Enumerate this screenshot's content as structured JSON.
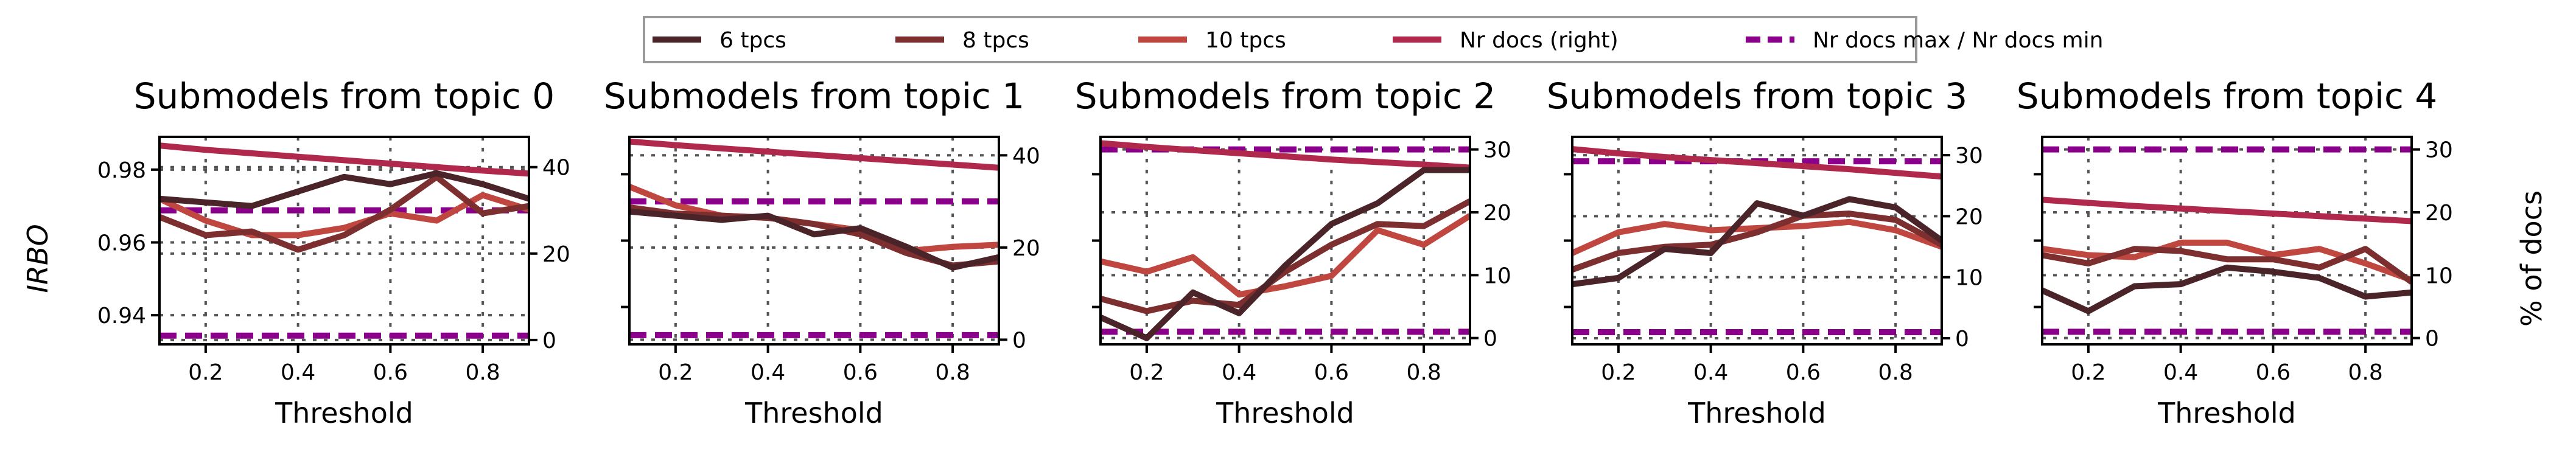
{
  "colors": {
    "6 tpcs": "#4a2428",
    "8 tpcs": "#7d2e2e",
    "10 tpcs": "#c0473f",
    "nrdocs": "#b0284b",
    "minmax": "#8b008b"
  },
  "legend": {
    "items": [
      {
        "label": "6 tpcs",
        "color_key": "6 tpcs",
        "dashed": false
      },
      {
        "label": "8 tpcs",
        "color_key": "8 tpcs",
        "dashed": false
      },
      {
        "label": "10 tpcs",
        "color_key": "10 tpcs",
        "dashed": false
      },
      {
        "label": "Nr docs (right)",
        "color_key": "nrdocs",
        "dashed": false
      },
      {
        "label": "Nr docs max / Nr docs min",
        "color_key": "minmax",
        "dashed": true
      }
    ]
  },
  "left_label": "IRBO",
  "right_label": "% of docs",
  "chart_data": [
    {
      "type": "line",
      "title": "Submodels from topic 0",
      "xlabel": "Threshold",
      "xlim": [
        0.1,
        0.9
      ],
      "xticks": [
        0.2,
        0.4,
        0.6,
        0.8
      ],
      "xtick_labels": [
        "0.2",
        "0.4",
        "0.6",
        "0.8"
      ],
      "ylim": [
        0.932,
        0.989
      ],
      "yticks": [
        0.94,
        0.96,
        0.98
      ],
      "ytick_labels": [
        "0.94",
        "0.96",
        "0.98"
      ],
      "y2lim": [
        -1,
        47
      ],
      "y2ticks": [
        0,
        20,
        40
      ],
      "y2tick_labels": [
        "0",
        "20",
        "40"
      ],
      "x": [
        0.1,
        0.2,
        0.3,
        0.4,
        0.5,
        0.6,
        0.7,
        0.8,
        0.9
      ],
      "series": [
        {
          "name": "6 tpcs",
          "values": [
            0.972,
            0.971,
            0.97,
            0.974,
            0.978,
            0.976,
            0.979,
            0.976,
            0.972
          ]
        },
        {
          "name": "8 tpcs",
          "values": [
            0.967,
            0.962,
            0.963,
            0.958,
            0.962,
            0.969,
            0.978,
            0.968,
            0.97
          ]
        },
        {
          "name": "10 tpcs",
          "values": [
            0.972,
            0.966,
            0.962,
            0.962,
            0.964,
            0.968,
            0.966,
            0.973,
            0.969
          ]
        }
      ],
      "nrdocs": [
        45,
        44,
        43.2,
        42.4,
        41.6,
        40.8,
        40,
        39.2,
        38.5
      ],
      "nrdocs_max": 30,
      "nrdocs_min": 1
    },
    {
      "type": "line",
      "title": "Submodels from topic 1",
      "xlabel": "Threshold",
      "xlim": [
        0.1,
        0.9
      ],
      "xticks": [
        0.2,
        0.4,
        0.6,
        0.8
      ],
      "xtick_labels": [
        "0.2",
        "0.4",
        "0.6",
        "0.8"
      ],
      "y2lim": [
        -1,
        44
      ],
      "y2ticks": [
        0,
        20,
        40
      ],
      "y2tick_labels": [
        "0",
        "20",
        "40"
      ],
      "x": [
        0.1,
        0.2,
        0.3,
        0.4,
        0.5,
        0.6,
        0.7,
        0.8,
        0.9
      ],
      "ylim": [
        0,
        1
      ],
      "series": [
        {
          "name": "6 tpcs",
          "values": [
            0.64,
            0.62,
            0.6,
            0.62,
            0.53,
            0.56,
            0.47,
            0.37,
            0.42
          ]
        },
        {
          "name": "8 tpcs",
          "values": [
            0.66,
            0.63,
            0.62,
            0.61,
            0.58,
            0.53,
            0.44,
            0.38,
            0.4
          ]
        },
        {
          "name": "10 tpcs",
          "values": [
            0.76,
            0.67,
            0.62,
            0.61,
            0.58,
            0.55,
            0.45,
            0.47,
            0.48
          ]
        }
      ],
      "nrdocs": [
        43,
        42.2,
        41.5,
        40.8,
        40.1,
        39.4,
        38.7,
        38,
        37.3
      ],
      "nrdocs_max": 30,
      "nrdocs_min": 1
    },
    {
      "type": "line",
      "title": "Submodels from topic 2",
      "xlabel": "Threshold",
      "xlim": [
        0.1,
        0.9
      ],
      "xticks": [
        0.2,
        0.4,
        0.6,
        0.8
      ],
      "xtick_labels": [
        "0.2",
        "0.4",
        "0.6",
        "0.8"
      ],
      "y2lim": [
        -1,
        32
      ],
      "y2ticks": [
        0,
        10,
        20,
        30
      ],
      "y2tick_labels": [
        "0",
        "10",
        "20",
        "30"
      ],
      "x": [
        0.1,
        0.2,
        0.3,
        0.4,
        0.5,
        0.6,
        0.7,
        0.8,
        0.9
      ],
      "ylim": [
        0,
        1
      ],
      "series": [
        {
          "name": "6 tpcs",
          "values": [
            0.13,
            0.03,
            0.25,
            0.15,
            0.38,
            0.58,
            0.68,
            0.84,
            0.84
          ]
        },
        {
          "name": "8 tpcs",
          "values": [
            0.22,
            0.16,
            0.21,
            0.19,
            0.35,
            0.48,
            0.58,
            0.57,
            0.69
          ]
        },
        {
          "name": "10 tpcs",
          "values": [
            0.4,
            0.35,
            0.42,
            0.24,
            0.28,
            0.33,
            0.55,
            0.48,
            0.62
          ]
        }
      ],
      "nrdocs": [
        31,
        30.4,
        29.9,
        29.4,
        28.9,
        28.4,
        28,
        27.6,
        27.1
      ],
      "nrdocs_max": 30,
      "nrdocs_min": 1
    },
    {
      "type": "line",
      "title": "Submodels from topic 3",
      "xlabel": "Threshold",
      "xlim": [
        0.1,
        0.9
      ],
      "xticks": [
        0.2,
        0.4,
        0.6,
        0.8
      ],
      "xtick_labels": [
        "0.2",
        "0.4",
        "0.6",
        "0.8"
      ],
      "y2lim": [
        -1,
        33
      ],
      "y2ticks": [
        0,
        10,
        20,
        30
      ],
      "y2tick_labels": [
        "0",
        "10",
        "20",
        "30"
      ],
      "x": [
        0.1,
        0.2,
        0.3,
        0.4,
        0.5,
        0.6,
        0.7,
        0.8,
        0.9
      ],
      "ylim": [
        0,
        1
      ],
      "series": [
        {
          "name": "6 tpcs",
          "values": [
            0.29,
            0.32,
            0.46,
            0.44,
            0.68,
            0.62,
            0.7,
            0.66,
            0.5
          ]
        },
        {
          "name": "8 tpcs",
          "values": [
            0.36,
            0.44,
            0.47,
            0.48,
            0.54,
            0.62,
            0.63,
            0.6,
            0.48
          ]
        },
        {
          "name": "10 tpcs",
          "values": [
            0.44,
            0.54,
            0.58,
            0.55,
            0.56,
            0.57,
            0.59,
            0.55,
            0.47
          ]
        }
      ],
      "nrdocs": [
        31,
        30.3,
        29.7,
        29.2,
        28.7,
        28.2,
        27.7,
        27.1,
        26.5
      ],
      "nrdocs_max": 29,
      "nrdocs_min": 1
    },
    {
      "type": "line",
      "title": "Submodels from topic 4",
      "xlabel": "Threshold",
      "xlim": [
        0.1,
        0.9
      ],
      "xticks": [
        0.2,
        0.4,
        0.6,
        0.8
      ],
      "xtick_labels": [
        "0.2",
        "0.4",
        "0.6",
        "0.8"
      ],
      "y2lim": [
        -1,
        32
      ],
      "y2ticks": [
        0,
        10,
        20,
        30
      ],
      "y2tick_labels": [
        "0",
        "10",
        "20",
        "30"
      ],
      "x": [
        0.1,
        0.2,
        0.3,
        0.4,
        0.5,
        0.6,
        0.7,
        0.8,
        0.9
      ],
      "ylim": [
        0,
        1
      ],
      "series": [
        {
          "name": "6 tpcs",
          "values": [
            0.26,
            0.16,
            0.28,
            0.29,
            0.37,
            0.35,
            0.32,
            0.23,
            0.25
          ]
        },
        {
          "name": "8 tpcs",
          "values": [
            0.43,
            0.39,
            0.46,
            0.45,
            0.41,
            0.41,
            0.37,
            0.46,
            0.3
          ]
        },
        {
          "name": "10 tpcs",
          "values": [
            0.46,
            0.43,
            0.42,
            0.49,
            0.49,
            0.43,
            0.46,
            0.39,
            0.31
          ]
        }
      ],
      "nrdocs": [
        22,
        21.5,
        21,
        20.6,
        20.2,
        19.8,
        19.4,
        19,
        18.6
      ],
      "nrdocs_max": 30,
      "nrdocs_min": 1
    }
  ]
}
